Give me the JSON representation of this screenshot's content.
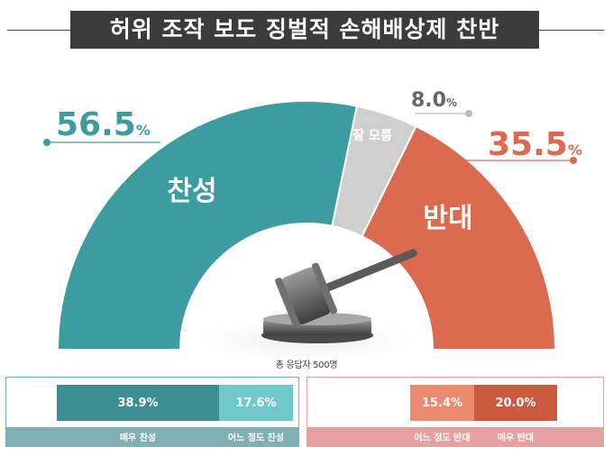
{
  "title": "허위 조작 보도 징벌적 손해배상제 찬반",
  "respondents": "총 응답자 500명",
  "colors": {
    "agree": "#3c9ca0",
    "unsure": "#cfcfcf",
    "oppose": "#db6a4f"
  },
  "chart_data": {
    "type": "pie",
    "categories": [
      "찬성",
      "잘 모름",
      "반대"
    ],
    "values": [
      56.5,
      8.0,
      35.5
    ],
    "value_labels": [
      "56.5",
      "8.0",
      "35.5"
    ],
    "unit": "%",
    "breakdown": {
      "agree": [
        {
          "label": "매우 찬성",
          "value": 38.9,
          "text": "38.9%"
        },
        {
          "label": "어느 정도 찬성",
          "value": 17.6,
          "text": "17.6%"
        }
      ],
      "oppose": [
        {
          "label": "어느 정도 반대",
          "value": 15.4,
          "text": "15.4%"
        },
        {
          "label": "매우 반대",
          "value": 20.0,
          "text": "20.0%"
        }
      ]
    }
  }
}
